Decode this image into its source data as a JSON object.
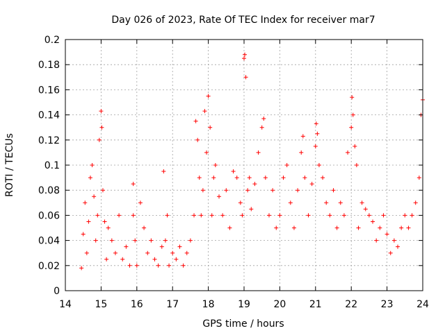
{
  "chart_data": {
    "type": "scatter",
    "title": "Day 026 of 2023, Rate Of TEC Index for receiver mar7",
    "xlabel": "GPS time / hours",
    "ylabel": "ROTI / TECUs",
    "xlim": [
      14,
      24
    ],
    "ylim": [
      0,
      0.2
    ],
    "x_ticks": [
      "14",
      "15",
      "16",
      "17",
      "18",
      "19",
      "20",
      "21",
      "22",
      "23",
      "24"
    ],
    "y_ticks": [
      "0",
      "0.02",
      "0.04",
      "0.06",
      "0.08",
      "0.1",
      "0.12",
      "0.14",
      "0.16",
      "0.18",
      "0.2"
    ],
    "grid": true,
    "marker": "+",
    "color": "#ff0000",
    "series": [
      {
        "x": [
          14.45,
          14.5,
          14.55,
          14.6,
          14.65,
          14.7,
          14.75,
          14.8,
          14.85,
          14.9,
          14.95,
          15.0,
          15.02,
          15.05,
          15.1,
          15.15,
          15.2,
          15.3,
          15.4,
          15.5,
          15.6,
          15.7,
          15.8,
          15.9,
          15.9,
          15.95,
          16.0,
          16.1,
          16.2,
          16.3,
          16.4,
          16.5,
          16.6,
          16.7,
          16.75,
          16.8,
          16.85,
          16.9,
          17.0,
          17.1,
          17.2,
          17.3,
          17.4,
          17.5,
          17.6,
          17.65,
          17.7,
          17.75,
          17.8,
          17.85,
          17.9,
          17.95,
          18.0,
          18.05,
          18.1,
          18.15,
          18.2,
          18.3,
          18.4,
          18.5,
          18.6,
          18.7,
          18.8,
          18.9,
          18.95,
          19.0,
          19.02,
          19.05,
          19.1,
          19.15,
          19.2,
          19.3,
          19.4,
          19.5,
          19.55,
          19.6,
          19.7,
          19.8,
          19.9,
          20.0,
          20.1,
          20.2,
          20.3,
          20.4,
          20.5,
          20.6,
          20.65,
          20.7,
          20.8,
          20.9,
          21.0,
          21.02,
          21.05,
          21.1,
          21.2,
          21.3,
          21.4,
          21.5,
          21.6,
          21.7,
          21.8,
          21.9,
          22.0,
          22.02,
          22.05,
          22.1,
          22.15,
          22.2,
          22.3,
          22.4,
          22.5,
          22.6,
          22.7,
          22.8,
          22.9,
          23.0,
          23.1,
          23.2,
          23.3,
          23.4,
          23.5,
          23.6,
          23.7,
          23.8,
          23.9,
          23.95,
          24.0
        ],
        "y": [
          0.018,
          0.045,
          0.07,
          0.03,
          0.055,
          0.09,
          0.1,
          0.075,
          0.04,
          0.06,
          0.12,
          0.143,
          0.13,
          0.08,
          0.055,
          0.025,
          0.05,
          0.04,
          0.03,
          0.06,
          0.025,
          0.035,
          0.02,
          0.085,
          0.06,
          0.04,
          0.02,
          0.07,
          0.05,
          0.03,
          0.04,
          0.025,
          0.02,
          0.035,
          0.095,
          0.04,
          0.06,
          0.02,
          0.03,
          0.025,
          0.035,
          0.02,
          0.03,
          0.04,
          0.06,
          0.135,
          0.12,
          0.09,
          0.06,
          0.08,
          0.143,
          0.11,
          0.155,
          0.13,
          0.06,
          0.09,
          0.1,
          0.075,
          0.06,
          0.08,
          0.05,
          0.095,
          0.09,
          0.07,
          0.06,
          0.185,
          0.188,
          0.17,
          0.08,
          0.09,
          0.065,
          0.085,
          0.11,
          0.13,
          0.137,
          0.09,
          0.06,
          0.08,
          0.05,
          0.06,
          0.09,
          0.1,
          0.07,
          0.05,
          0.08,
          0.11,
          0.123,
          0.09,
          0.06,
          0.085,
          0.115,
          0.133,
          0.125,
          0.1,
          0.09,
          0.07,
          0.06,
          0.08,
          0.05,
          0.07,
          0.06,
          0.11,
          0.13,
          0.154,
          0.14,
          0.115,
          0.1,
          0.05,
          0.07,
          0.065,
          0.06,
          0.055,
          0.04,
          0.05,
          0.06,
          0.045,
          0.03,
          0.04,
          0.035,
          0.05,
          0.06,
          0.05,
          0.06,
          0.07,
          0.09,
          0.14,
          0.152
        ]
      }
    ]
  }
}
